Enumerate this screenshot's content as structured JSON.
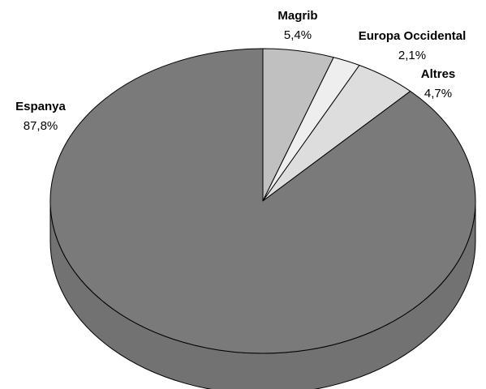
{
  "chart_data": {
    "type": "pie",
    "categories": [
      "Magrib",
      "Europa Occidental",
      "Altres",
      "Espanya"
    ],
    "values": [
      5.4,
      2.1,
      4.7,
      87.8
    ],
    "value_labels": [
      "5,4%",
      "2,1%",
      "4,7%",
      "87,8%"
    ],
    "colors": [
      "#c0c0c0",
      "#eeeeee",
      "#dddddd",
      "#7a7a7a"
    ]
  }
}
